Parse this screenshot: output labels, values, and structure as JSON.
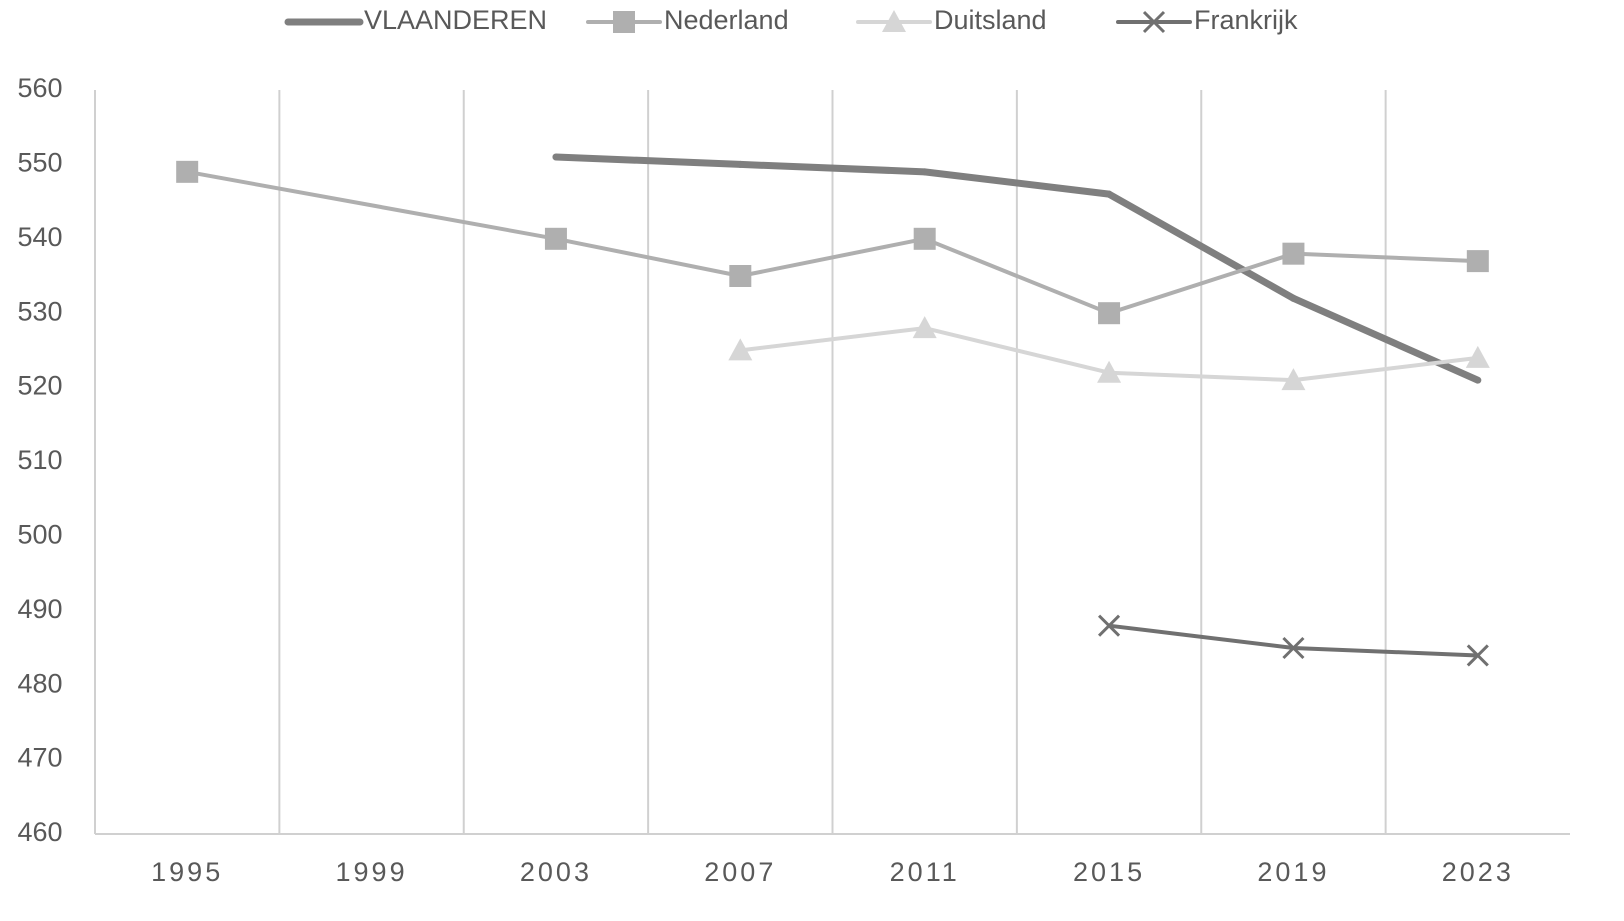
{
  "chart_data": {
    "type": "line",
    "categories": [
      "1995",
      "1999",
      "2003",
      "2007",
      "2011",
      "2015",
      "2019",
      "2023"
    ],
    "series": [
      {
        "name": "VLAANDEREN",
        "color": "#7f7f7f",
        "marker": "none",
        "width": 7,
        "values": [
          null,
          null,
          551,
          550,
          549,
          546,
          532,
          521
        ]
      },
      {
        "name": "Nederland",
        "color": "#afafaf",
        "marker": "square",
        "width": 4,
        "values": [
          549,
          null,
          540,
          535,
          540,
          530,
          538,
          537
        ]
      },
      {
        "name": "Duitsland",
        "color": "#d6d6d6",
        "marker": "triangle",
        "width": 4,
        "values": [
          null,
          null,
          null,
          525,
          528,
          522,
          521,
          524
        ]
      },
      {
        "name": "Frankrijk",
        "color": "#707070",
        "marker": "x",
        "width": 4,
        "values": [
          null,
          null,
          null,
          null,
          null,
          488,
          485,
          484
        ]
      }
    ],
    "ylim": [
      460,
      560
    ],
    "yticks": [
      460,
      470,
      480,
      490,
      500,
      510,
      520,
      530,
      540,
      550,
      560
    ],
    "x_grid": true,
    "legend": "top"
  }
}
